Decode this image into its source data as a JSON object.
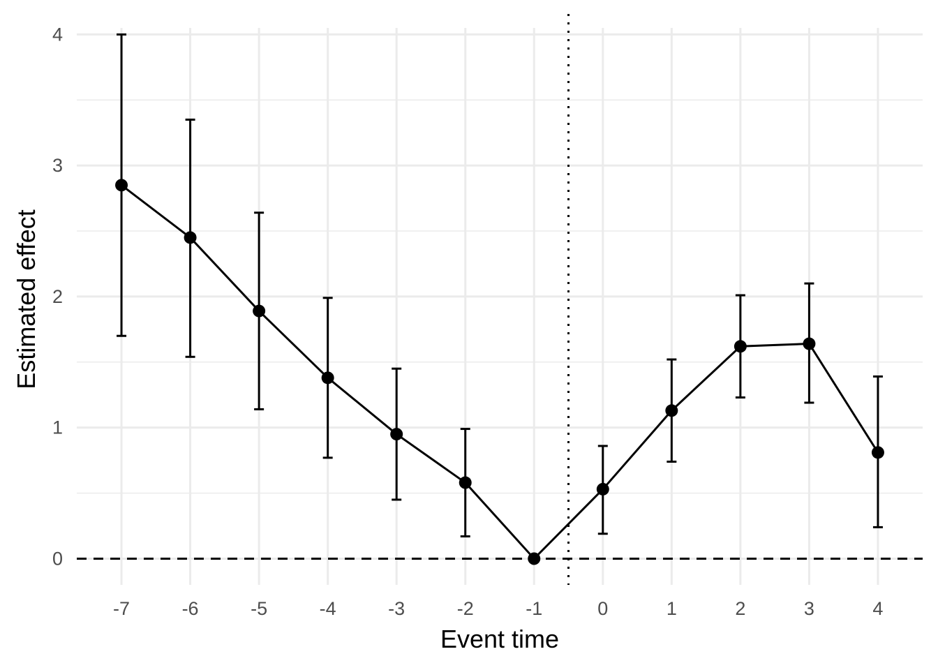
{
  "chart_data": {
    "type": "line",
    "xlabel": "Event time",
    "ylabel": "Estimated effect",
    "x": [
      -7,
      -6,
      -5,
      -4,
      -3,
      -2,
      -1,
      0,
      1,
      2,
      3,
      4
    ],
    "series": [
      {
        "values": [
          2.85,
          2.45,
          1.89,
          1.38,
          0.95,
          0.58,
          0.0,
          0.53,
          1.13,
          1.62,
          1.64,
          0.81
        ],
        "ci_lower": [
          1.7,
          1.54,
          1.14,
          0.77,
          0.45,
          0.17,
          0.0,
          0.19,
          0.74,
          1.23,
          1.19,
          0.24
        ],
        "ci_upper": [
          4.0,
          3.35,
          2.64,
          1.99,
          1.45,
          0.99,
          0.0,
          0.86,
          1.52,
          2.01,
          2.1,
          1.39
        ]
      }
    ],
    "xticks": [
      "-7",
      "-6",
      "-5",
      "-4",
      "-3",
      "-2",
      "-1",
      "0",
      "1",
      "2",
      "3",
      "4"
    ],
    "yticks": [
      "0",
      "1",
      "2",
      "3",
      "4"
    ],
    "ylim": [
      -0.2,
      4.05
    ],
    "xlim": [
      -7.65,
      4.65
    ],
    "reference_lines": {
      "horizontal_dashed_y": 0,
      "vertical_dotted_x": -0.5
    },
    "grid": true,
    "colors": {
      "series": "#000000",
      "grid": "#ebebeb",
      "tick_label": "#4d4d4d"
    }
  }
}
